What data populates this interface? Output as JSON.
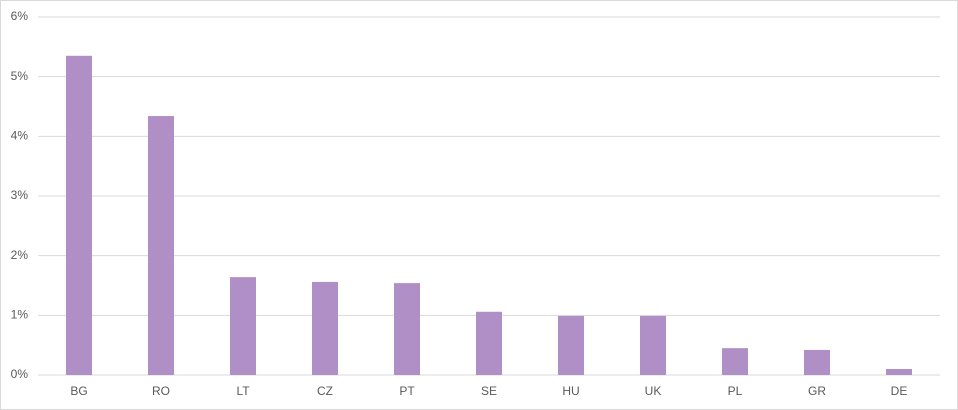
{
  "chart_data": {
    "type": "bar",
    "categories": [
      "BG",
      "RO",
      "LT",
      "CZ",
      "PT",
      "SE",
      "HU",
      "UK",
      "PL",
      "GR",
      "DE"
    ],
    "values": [
      5.35,
      4.34,
      1.64,
      1.56,
      1.54,
      1.06,
      0.99,
      0.99,
      0.45,
      0.42,
      0.1
    ],
    "color": "#b08fc7",
    "ylim": [
      0,
      6
    ],
    "yticks": [
      {
        "value": 0,
        "label": "0%"
      },
      {
        "value": 1,
        "label": "1%"
      },
      {
        "value": 2,
        "label": "2%"
      },
      {
        "value": 3,
        "label": "3%"
      },
      {
        "value": 4,
        "label": "4%"
      },
      {
        "value": 5,
        "label": "5%"
      },
      {
        "value": 6,
        "label": "6%"
      }
    ],
    "grid": true
  }
}
